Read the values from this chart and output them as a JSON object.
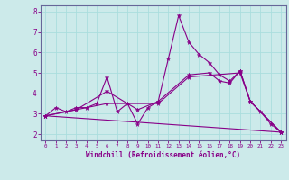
{
  "xlabel": "Windchill (Refroidissement éolien,°C)",
  "xlim": [
    -0.5,
    23.5
  ],
  "ylim": [
    1.7,
    8.3
  ],
  "yticks": [
    2,
    3,
    4,
    5,
    6,
    7,
    8
  ],
  "xticks": [
    0,
    1,
    2,
    3,
    4,
    5,
    6,
    7,
    8,
    9,
    10,
    11,
    12,
    13,
    14,
    15,
    16,
    17,
    18,
    19,
    20,
    21,
    22,
    23
  ],
  "bg_color": "#cceaea",
  "line_color": "#880088",
  "grid_color": "#aadddd",
  "spine_color": "#666699",
  "lines": [
    {
      "x": [
        0,
        1,
        2,
        3,
        4,
        5,
        6,
        7,
        8,
        9,
        10,
        11,
        12,
        13,
        14,
        15,
        16,
        17,
        18,
        19,
        20,
        21,
        22,
        23
      ],
      "y": [
        2.9,
        3.3,
        3.1,
        3.3,
        3.3,
        3.5,
        4.8,
        3.1,
        3.5,
        2.5,
        3.3,
        3.6,
        5.7,
        7.8,
        6.5,
        5.9,
        5.5,
        4.9,
        4.6,
        5.1,
        3.6,
        3.1,
        2.5,
        2.1
      ]
    },
    {
      "x": [
        0,
        3,
        6,
        9,
        11,
        14,
        16,
        17,
        18,
        19,
        20,
        23
      ],
      "y": [
        2.9,
        3.2,
        4.1,
        3.2,
        3.6,
        4.9,
        5.0,
        4.6,
        4.5,
        5.1,
        3.6,
        2.1
      ]
    },
    {
      "x": [
        0,
        6,
        11,
        14,
        19,
        20,
        23
      ],
      "y": [
        2.9,
        3.5,
        3.5,
        4.8,
        5.0,
        3.6,
        2.1
      ]
    },
    {
      "x": [
        0,
        23
      ],
      "y": [
        2.9,
        2.1
      ]
    }
  ]
}
